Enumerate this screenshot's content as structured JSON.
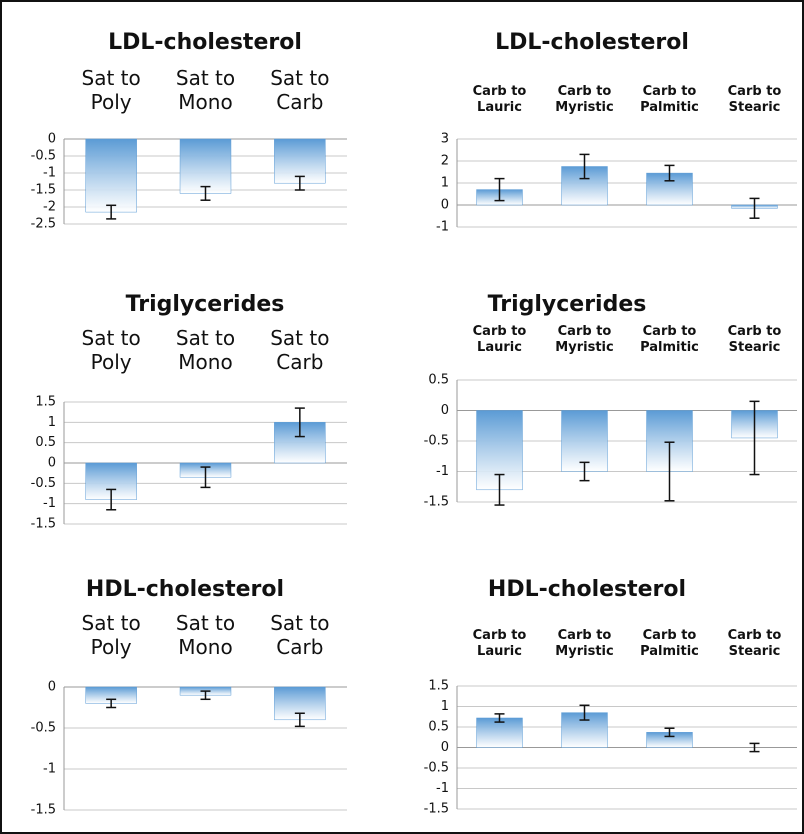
{
  "chart_data": [
    {
      "type": "bar",
      "title": "LDL-cholesterol",
      "categories": [
        "Sat to Poly",
        "Sat to Mono",
        "Sat to Carb"
      ],
      "values": [
        -2.15,
        -1.6,
        -1.3
      ],
      "errors": [
        0.2,
        0.2,
        0.2
      ],
      "color": "#5b9bd5",
      "ylim": [
        -2.5,
        0
      ],
      "yticks": [
        0,
        -0.5,
        -1,
        -1.5,
        -2,
        -2.5
      ],
      "grid": true
    },
    {
      "type": "bar",
      "title": "LDL-cholesterol",
      "categories": [
        "Carb to Lauric",
        "Carb to Myristic",
        "Carb to Palmitic",
        "Carb to Stearic"
      ],
      "values": [
        0.7,
        1.75,
        1.45,
        -0.15
      ],
      "errors": [
        0.5,
        0.55,
        0.35,
        0.45
      ],
      "color": "#5b9bd5",
      "ylim": [
        -1,
        3
      ],
      "yticks": [
        3,
        2,
        1,
        0,
        -1
      ],
      "grid": true
    },
    {
      "type": "bar",
      "title": "Triglycerides",
      "categories": [
        "Sat to Poly",
        "Sat to Mono",
        "Sat to Carb"
      ],
      "values": [
        -0.9,
        -0.35,
        1.0
      ],
      "errors": [
        0.25,
        0.25,
        0.35
      ],
      "color": "#5b9bd5",
      "ylim": [
        -1.5,
        1.5
      ],
      "yticks": [
        1.5,
        1,
        0.5,
        0,
        -0.5,
        -1,
        -1.5
      ],
      "grid": true
    },
    {
      "type": "bar",
      "title": "Triglycerides",
      "categories": [
        "Carb to Lauric",
        "Carb to Myristic",
        "Carb to Palmitic",
        "Carb to Stearic"
      ],
      "values": [
        -1.3,
        -1.0,
        -1.0,
        -0.45
      ],
      "errors": [
        0.25,
        0.15,
        0.48,
        0.6
      ],
      "color": "#5b9bd5",
      "ylim": [
        -1.5,
        0.5
      ],
      "yticks": [
        0.5,
        0,
        -0.5,
        -1,
        -1.5
      ],
      "grid": true
    },
    {
      "type": "bar",
      "title": "HDL-cholesterol",
      "categories": [
        "Sat to Poly",
        "Sat to Mono",
        "Sat to Carb"
      ],
      "values": [
        -0.2,
        -0.1,
        -0.4
      ],
      "errors": [
        0.05,
        0.05,
        0.08
      ],
      "color": "#5b9bd5",
      "ylim": [
        -1.5,
        0
      ],
      "yticks": [
        0,
        -0.5,
        -1,
        -1.5
      ],
      "grid": true
    },
    {
      "type": "bar",
      "title": "HDL-cholesterol",
      "categories": [
        "Carb to Lauric",
        "Carb to Myristic",
        "Carb to Palmitic",
        "Carb to Stearic"
      ],
      "values": [
        0.72,
        0.85,
        0.37,
        0.0
      ],
      "errors": [
        0.1,
        0.18,
        0.1,
        0.1
      ],
      "color": "#5b9bd5",
      "ylim": [
        -1.5,
        1.5
      ],
      "yticks": [
        1.5,
        1,
        0.5,
        0,
        -0.5,
        -1,
        -1.5
      ],
      "grid": true
    }
  ]
}
